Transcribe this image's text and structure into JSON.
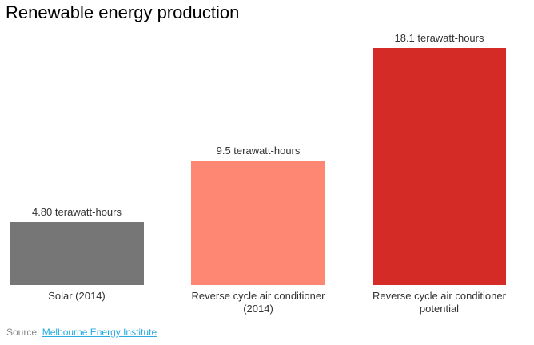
{
  "chart": {
    "title": "Renewable energy production"
  },
  "chart_data": {
    "type": "bar",
    "title": "Renewable energy production",
    "categories": [
      "Solar (2014)",
      "Reverse cycle air conditioner (2014)",
      "Reverse cycle air conditioner potential"
    ],
    "values": [
      4.8,
      9.5,
      18.1
    ],
    "value_labels": [
      "4.80 terawatt-hours",
      "9.5 terawatt-hours",
      "18.1 terawatt-hours"
    ],
    "unit": "terawatt-hours",
    "bar_colors": [
      "#767676",
      "#fe8774",
      "#d52b27"
    ],
    "label_color": "#333333",
    "xlabel": "",
    "ylabel": "",
    "ylim": [
      0,
      18.1
    ],
    "grid": false,
    "legend": "none",
    "orientation": "vertical"
  },
  "source": {
    "prefix": "Source: ",
    "link_text": "Melbourne Energy Institute",
    "link_color": "#29abe2"
  }
}
